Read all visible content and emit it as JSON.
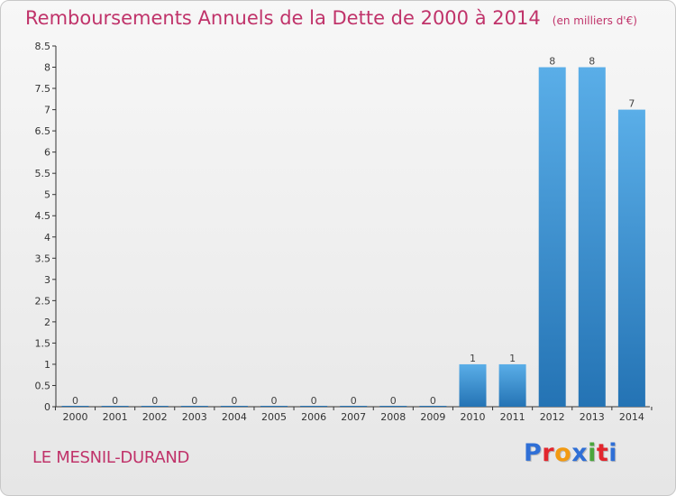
{
  "title": "Remboursements Annuels de la Dette de 2000 à 2014",
  "unit": "(en milliers d'€)",
  "commune": "LE MESNIL-DURAND",
  "logo": {
    "text": "Proxiti",
    "colors": [
      "#2f6fd6",
      "#e2262d",
      "#f29a12",
      "#2f6fd6",
      "#4aa63c",
      "#e2262d",
      "#2f6fd6"
    ]
  },
  "colors": {
    "title": "#c0336a",
    "bar_top": "#5aaee8",
    "bar_bottom": "#2473b4",
    "axis": "#333333"
  },
  "chart_data": {
    "type": "bar",
    "title": "Remboursements Annuels de la Dette de 2000 à 2014",
    "categories": [
      "2000",
      "2001",
      "2002",
      "2003",
      "2004",
      "2005",
      "2006",
      "2007",
      "2008",
      "2009",
      "2010",
      "2011",
      "2012",
      "2013",
      "2014"
    ],
    "values": [
      0,
      0,
      0,
      0,
      0,
      0,
      0,
      0,
      0,
      0,
      1,
      1,
      8,
      8,
      7
    ],
    "data_labels": [
      "0",
      "0",
      "0",
      "0",
      "0",
      "0",
      "0",
      "0",
      "0",
      "0",
      "1",
      "1",
      "8",
      "8",
      "7"
    ],
    "y_ticks": [
      "0",
      "0.5",
      "1",
      "1.5",
      "2",
      "2.5",
      "3",
      "3.5",
      "4",
      "4.5",
      "5",
      "5.5",
      "6",
      "6.5",
      "7",
      "7.5",
      "8",
      "8.5"
    ],
    "ylim": [
      0,
      8.5
    ],
    "xlabel": "",
    "ylabel": "",
    "grid": false
  }
}
